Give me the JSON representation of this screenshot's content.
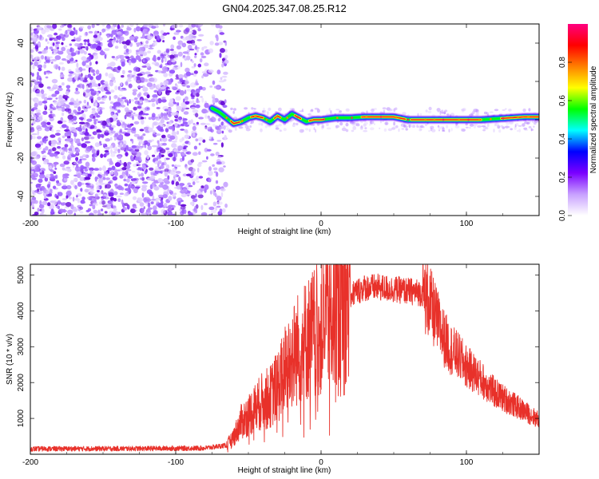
{
  "title": "GN04.2025.347.08.25.R12",
  "colors": {
    "trace": "#e8312a",
    "noise": "#7b1fe0",
    "frame": "#000000"
  },
  "chart_data": [
    {
      "type": "heatmap",
      "name": "spectrogram",
      "xlabel": "Height of straight line (km)",
      "ylabel": "Frequency (Hz)",
      "xlim": [
        -200,
        150
      ],
      "ylim": [
        -50,
        50
      ],
      "xticks": [
        -200,
        -100,
        0,
        100
      ],
      "yticks": [
        -40,
        -20,
        0,
        20,
        40
      ],
      "noise_region_x": [
        -200,
        -65
      ],
      "signal_track": {
        "x": [
          -75,
          -70,
          -65,
          -60,
          -55,
          -50,
          -45,
          -40,
          -35,
          -30,
          -25,
          -20,
          -15,
          -10,
          -5,
          0,
          10,
          20,
          30,
          40,
          50,
          60,
          70,
          80,
          90,
          100,
          110,
          120,
          130,
          140,
          150
        ],
        "freq": [
          6,
          4,
          1,
          -2,
          -1,
          1,
          2,
          1,
          -1,
          2,
          0,
          3,
          1,
          -1,
          0,
          0,
          1,
          1,
          1.5,
          1.5,
          1.5,
          0,
          0,
          0,
          0,
          0,
          0,
          0.5,
          1,
          1.5,
          1.5
        ]
      },
      "colorbar": {
        "label": "Normalized spectral amplitude",
        "range": [
          0.0,
          1.0
        ],
        "ticks": [
          "0.0",
          "0.2",
          "0.4",
          "0.6",
          "0.8"
        ],
        "tick_values": [
          0.0,
          0.2,
          0.4,
          0.6,
          0.8
        ],
        "gradient_stops": [
          "#ffffff",
          "#c8a0ff",
          "#7b00ff",
          "#0000ff",
          "#00ffff",
          "#00ff00",
          "#ffff00",
          "#ff8000",
          "#ff0000",
          "#ff0080"
        ]
      }
    },
    {
      "type": "line",
      "name": "snr",
      "xlabel": "Height of straight line (km)",
      "ylabel": "SNR (10 * v/v)",
      "xlim": [
        -200,
        150
      ],
      "ylim": [
        0,
        5300
      ],
      "xticks": [
        -200,
        -100,
        0,
        100
      ],
      "yticks": [
        1000,
        2000,
        3000,
        4000,
        5000
      ],
      "envelope_x": [
        -200,
        -120,
        -80,
        -65,
        -60,
        -55,
        -50,
        -45,
        -40,
        -35,
        -30,
        -25,
        -20,
        -15,
        -10,
        -5,
        0,
        5,
        10,
        15,
        20,
        25,
        30,
        40,
        50,
        60,
        70,
        75,
        80,
        85,
        90,
        95,
        100,
        110,
        120,
        130,
        140,
        150
      ],
      "envelope_y": [
        150,
        160,
        170,
        250,
        500,
        900,
        1100,
        1300,
        1500,
        1600,
        1900,
        2300,
        2700,
        3000,
        3200,
        3400,
        3600,
        3900,
        4100,
        4300,
        4450,
        4550,
        4650,
        4650,
        4600,
        4550,
        4500,
        4200,
        3700,
        3200,
        2900,
        2700,
        2450,
        2100,
        1700,
        1450,
        1200,
        950
      ]
    }
  ]
}
